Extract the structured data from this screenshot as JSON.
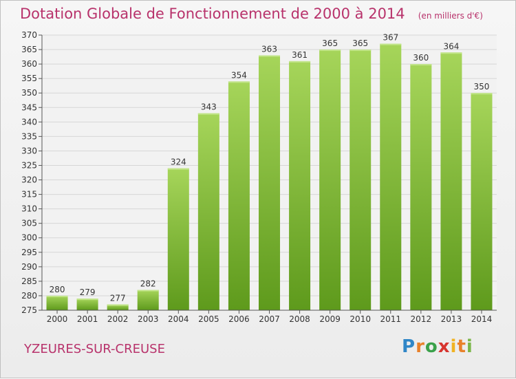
{
  "chart_data": {
    "type": "bar",
    "title": "Dotation Globale de Fonctionnement de 2000 à 2014",
    "unit": "(en milliers d'€)",
    "categories": [
      "2000",
      "2001",
      "2002",
      "2003",
      "2004",
      "2005",
      "2006",
      "2007",
      "2008",
      "2009",
      "2010",
      "2011",
      "2012",
      "2013",
      "2014"
    ],
    "values": [
      280,
      279,
      277,
      282,
      324,
      343,
      354,
      363,
      361,
      365,
      365,
      367,
      360,
      364,
      350
    ],
    "ylim": [
      275,
      370
    ],
    "ytick_step": 5,
    "grid": true,
    "bar_color_light": "#a6d55a",
    "bar_color_dark": "#5e9a1c"
  },
  "footer": {
    "commune": "YZEURES-SUR-CREUSE",
    "brand": "Proxiti"
  },
  "colors": {
    "title": "#b8326b",
    "grid": "#d6d6d6",
    "axis": "#555555"
  }
}
